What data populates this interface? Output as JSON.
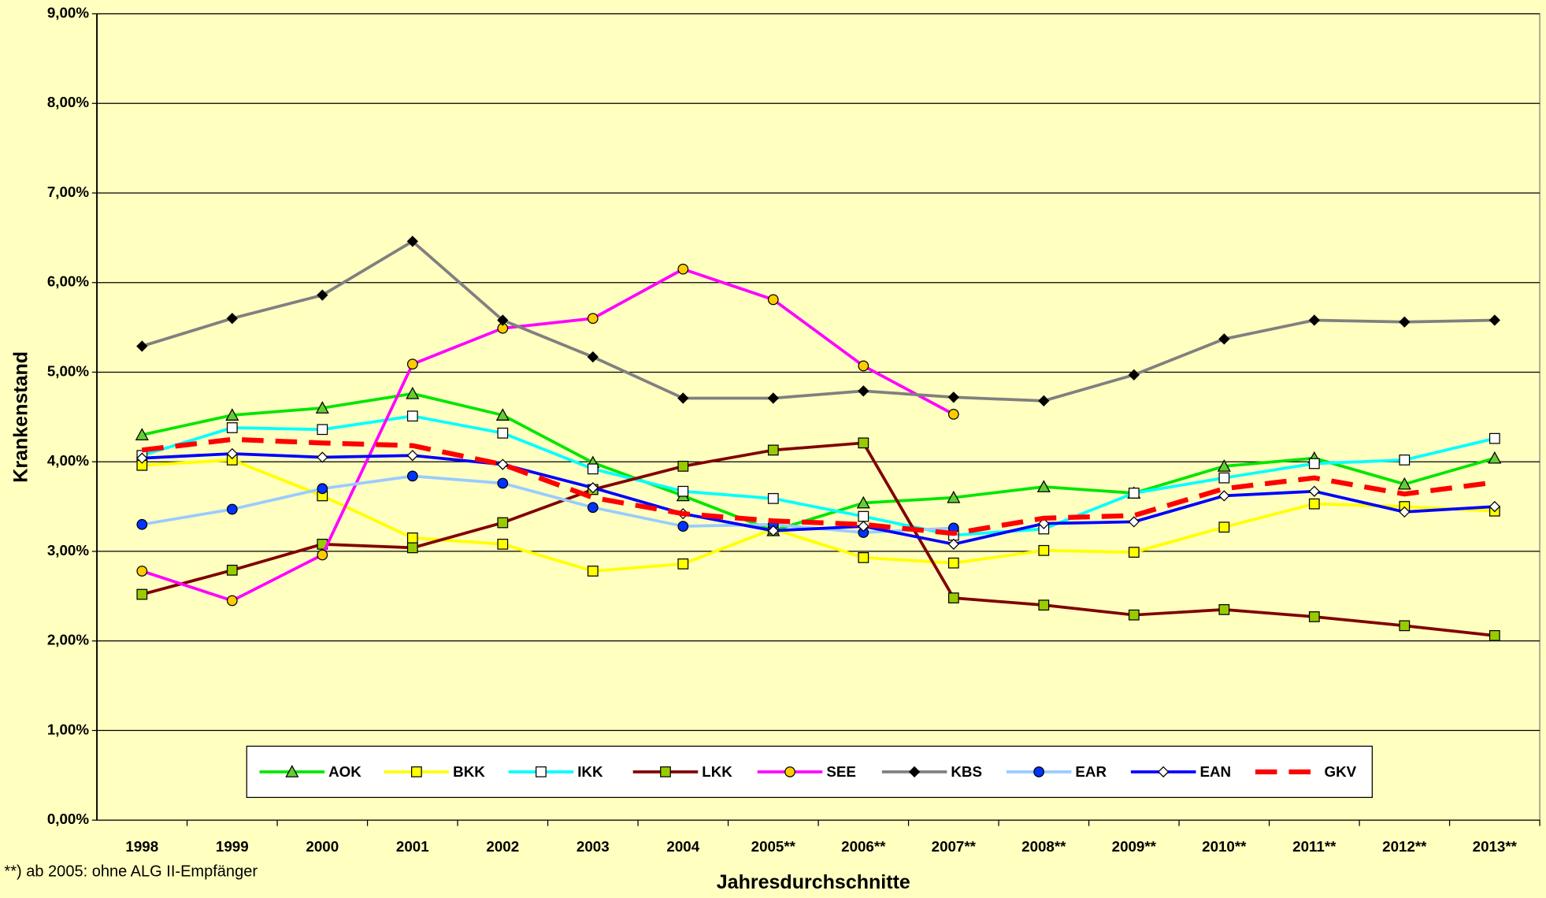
{
  "chart_data": {
    "type": "line",
    "x_label": "Jahresdurchschnitte",
    "y_label": "Krankenstand",
    "footnote": "**) ab 2005: ohne ALG II-Empfänger",
    "categories": [
      "1998",
      "1999",
      "2000",
      "2001",
      "2002",
      "2003",
      "2004",
      "2005**",
      "2006**",
      "2007**",
      "2008**",
      "2009**",
      "2010**",
      "2011**",
      "2012**",
      "2013**"
    ],
    "ylim": [
      0,
      9
    ],
    "yticks": [
      {
        "value": 0,
        "label": "0,00%"
      },
      {
        "value": 1,
        "label": "1,00%"
      },
      {
        "value": 2,
        "label": "2,00%"
      },
      {
        "value": 3,
        "label": "3,00%"
      },
      {
        "value": 4,
        "label": "4,00%"
      },
      {
        "value": 5,
        "label": "5,00%"
      },
      {
        "value": 6,
        "label": "6,00%"
      },
      {
        "value": 7,
        "label": "7,00%"
      },
      {
        "value": 8,
        "label": "8,00%"
      },
      {
        "value": 9,
        "label": "9,00%"
      }
    ],
    "grid": true,
    "legend": "bottom",
    "series": [
      {
        "name": "AOK",
        "color": "#00e600",
        "marker": "triangle",
        "marker_color": "#66cc33",
        "values": [
          4.3,
          4.52,
          4.6,
          4.76,
          4.52,
          3.99,
          3.62,
          3.23,
          3.54,
          3.6,
          3.72,
          3.65,
          3.95,
          4.04,
          3.75,
          4.04
        ]
      },
      {
        "name": "BKK",
        "color": "#ffff00",
        "marker": "square",
        "marker_color": "#ffff00",
        "values": [
          3.96,
          4.02,
          3.62,
          3.15,
          3.08,
          2.78,
          2.86,
          3.25,
          2.93,
          2.87,
          3.01,
          2.99,
          3.27,
          3.53,
          3.5,
          3.45
        ]
      },
      {
        "name": "IKK",
        "color": "#00ffff",
        "marker": "square",
        "marker_color": "#ffffff",
        "values": [
          4.07,
          4.38,
          4.36,
          4.51,
          4.32,
          3.92,
          3.67,
          3.59,
          3.39,
          3.18,
          3.25,
          3.65,
          3.82,
          3.98,
          4.02,
          4.26
        ]
      },
      {
        "name": "LKK",
        "color": "#800000",
        "marker": "square",
        "marker_color": "#99cc00",
        "values": [
          2.52,
          2.79,
          3.08,
          3.04,
          3.32,
          3.69,
          3.95,
          4.13,
          4.21,
          2.48,
          2.4,
          2.29,
          2.35,
          2.27,
          2.17,
          2.06
        ]
      },
      {
        "name": "SEE",
        "color": "#ff00ff",
        "marker": "circle",
        "marker_color": "#ffcc00",
        "values": [
          2.78,
          2.45,
          2.96,
          5.09,
          5.49,
          5.6,
          6.15,
          5.81,
          5.07,
          4.53,
          null,
          null,
          null,
          null,
          null,
          null
        ]
      },
      {
        "name": "KBS",
        "color": "#808080",
        "marker": "diamond",
        "marker_color": "#000000",
        "values": [
          5.29,
          5.6,
          5.86,
          6.46,
          5.58,
          5.17,
          4.71,
          4.71,
          4.79,
          4.72,
          4.68,
          4.97,
          5.37,
          5.58,
          5.56,
          5.58
        ]
      },
      {
        "name": "EAR",
        "color": "#99ccff",
        "marker": "circle",
        "marker_color": "#0033ff",
        "values": [
          3.3,
          3.47,
          3.7,
          3.84,
          3.76,
          3.49,
          3.28,
          3.3,
          3.21,
          3.26,
          null,
          null,
          null,
          null,
          null,
          null
        ]
      },
      {
        "name": "EAN",
        "color": "#0000ff",
        "marker": "diamond",
        "marker_color": "#ffffff",
        "values": [
          4.04,
          4.09,
          4.05,
          4.07,
          3.97,
          3.71,
          3.42,
          3.23,
          3.28,
          3.08,
          3.31,
          3.33,
          3.62,
          3.67,
          3.44,
          3.5
        ]
      },
      {
        "name": "GKV",
        "color": "#ff0000",
        "marker": null,
        "dash": true,
        "values": [
          4.13,
          4.25,
          4.21,
          4.18,
          3.97,
          3.6,
          3.42,
          3.34,
          3.3,
          3.2,
          3.37,
          3.4,
          3.7,
          3.82,
          3.64,
          3.77
        ]
      }
    ]
  }
}
